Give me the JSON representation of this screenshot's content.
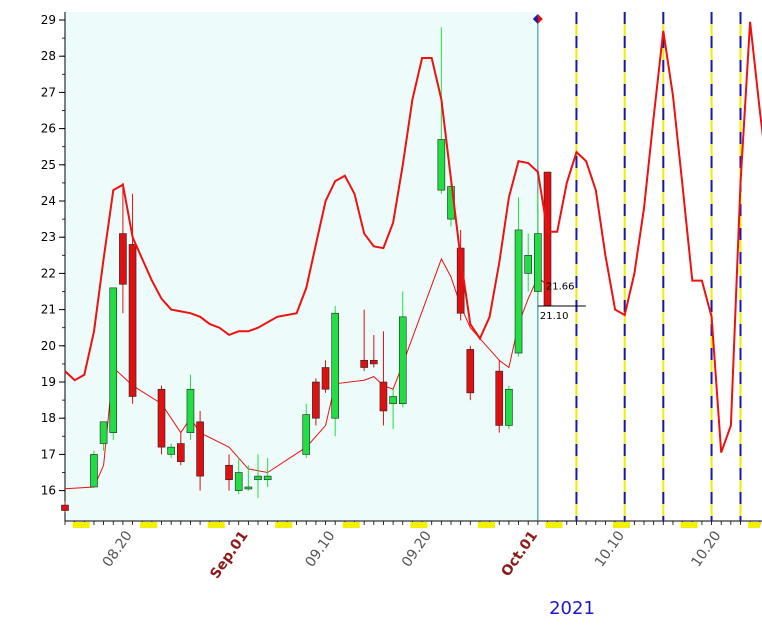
{
  "chart_data": {
    "type": "candlestick",
    "year_label": "2021",
    "y_axis": {
      "min": 15.5,
      "max": 29.2,
      "ticks": [
        16,
        17,
        18,
        19,
        20,
        21,
        22,
        23,
        24,
        25,
        26,
        27,
        28,
        29
      ]
    },
    "x_axis": {
      "start": "2021-08-13",
      "end": "2021-10-24",
      "ticks": [
        {
          "date": "2021-08-20",
          "label": "08.20",
          "kind": "day"
        },
        {
          "date": "2021-09-01",
          "label": "Sep.01",
          "kind": "month"
        },
        {
          "date": "2021-09-10",
          "label": "09.10",
          "kind": "day"
        },
        {
          "date": "2021-09-20",
          "label": "09.20",
          "kind": "day"
        },
        {
          "date": "2021-10-01",
          "label": "Oct.01",
          "kind": "month"
        },
        {
          "date": "2021-10-10",
          "label": "10.10",
          "kind": "day"
        },
        {
          "date": "2021-10-20",
          "label": "10.20",
          "kind": "day"
        }
      ]
    },
    "candles": [
      {
        "date": "2021-08-13",
        "open": 15.6,
        "high": 15.7,
        "low": 15.4,
        "close": 15.45
      },
      {
        "date": "2021-08-16",
        "open": 16.1,
        "high": 17.1,
        "low": 16.1,
        "close": 17.0
      },
      {
        "date": "2021-08-17",
        "open": 17.3,
        "high": 17.9,
        "low": 17.1,
        "close": 17.9
      },
      {
        "date": "2021-08-18",
        "open": 17.6,
        "high": 21.6,
        "low": 17.4,
        "close": 21.6
      },
      {
        "date": "2021-08-19",
        "open": 23.1,
        "high": 24.5,
        "low": 20.9,
        "close": 21.7
      },
      {
        "date": "2021-08-20",
        "open": 22.8,
        "high": 24.2,
        "low": 18.4,
        "close": 18.6
      },
      {
        "date": "2021-08-23",
        "open": 18.8,
        "high": 18.9,
        "low": 17.0,
        "close": 17.2
      },
      {
        "date": "2021-08-24",
        "open": 17.0,
        "high": 17.3,
        "low": 16.9,
        "close": 17.2
      },
      {
        "date": "2021-08-25",
        "open": 17.3,
        "high": 17.6,
        "low": 16.7,
        "close": 16.8
      },
      {
        "date": "2021-08-26",
        "open": 17.6,
        "high": 19.2,
        "low": 17.4,
        "close": 18.8
      },
      {
        "date": "2021-08-27",
        "open": 17.9,
        "high": 18.2,
        "low": 16.0,
        "close": 16.4
      },
      {
        "date": "2021-08-30",
        "open": 16.7,
        "high": 17.0,
        "low": 16.0,
        "close": 16.3
      },
      {
        "date": "2021-08-31",
        "open": 16.0,
        "high": 16.9,
        "low": 15.9,
        "close": 16.5
      },
      {
        "date": "2021-09-01",
        "open": 16.1,
        "high": 16.7,
        "low": 16.0,
        "close": 16.1
      },
      {
        "date": "2021-09-02",
        "open": 16.3,
        "high": 17.0,
        "low": 15.8,
        "close": 16.4
      },
      {
        "date": "2021-09-03",
        "open": 16.3,
        "high": 16.9,
        "low": 16.1,
        "close": 16.4
      },
      {
        "date": "2021-09-07",
        "open": 17.0,
        "high": 18.4,
        "low": 16.9,
        "close": 18.1
      },
      {
        "date": "2021-09-08",
        "open": 19.0,
        "high": 19.1,
        "low": 17.8,
        "close": 18.0
      },
      {
        "date": "2021-09-09",
        "open": 19.4,
        "high": 19.6,
        "low": 18.7,
        "close": 18.8
      },
      {
        "date": "2021-09-10",
        "open": 18.0,
        "high": 21.1,
        "low": 17.5,
        "close": 20.9
      },
      {
        "date": "2021-09-13",
        "open": 19.6,
        "high": 21.0,
        "low": 19.3,
        "close": 19.4
      },
      {
        "date": "2021-09-14",
        "open": 19.6,
        "high": 20.3,
        "low": 19.4,
        "close": 19.5
      },
      {
        "date": "2021-09-15",
        "open": 19.0,
        "high": 20.4,
        "low": 17.8,
        "close": 18.2
      },
      {
        "date": "2021-09-16",
        "open": 18.4,
        "high": 18.8,
        "low": 17.7,
        "close": 18.6
      },
      {
        "date": "2021-09-17",
        "open": 18.4,
        "high": 21.5,
        "low": 18.3,
        "close": 20.8
      },
      {
        "date": "2021-09-21",
        "open": 24.3,
        "high": 28.8,
        "low": 24.2,
        "close": 25.7
      },
      {
        "date": "2021-09-22",
        "open": 23.5,
        "high": 24.7,
        "low": 23.3,
        "close": 24.4
      },
      {
        "date": "2021-09-23",
        "open": 22.7,
        "high": 23.2,
        "low": 20.7,
        "close": 20.9
      },
      {
        "date": "2021-09-24",
        "open": 19.9,
        "high": 20.0,
        "low": 18.5,
        "close": 18.7
      },
      {
        "date": "2021-09-27",
        "open": 19.3,
        "high": 19.6,
        "low": 17.6,
        "close": 17.8
      },
      {
        "date": "2021-09-28",
        "open": 17.8,
        "high": 18.9,
        "low": 17.7,
        "close": 18.8
      },
      {
        "date": "2021-09-29",
        "open": 19.8,
        "high": 24.1,
        "low": 19.7,
        "close": 23.2
      },
      {
        "date": "2021-09-30",
        "open": 22.0,
        "high": 23.1,
        "low": 21.5,
        "close": 22.5
      },
      {
        "date": "2021-10-01",
        "open": 21.5,
        "high": 24.2,
        "low": 21.3,
        "close": 23.1
      },
      {
        "date": "2021-10-02",
        "open": 24.8,
        "high": 24.8,
        "low": 21.1,
        "close": 21.1
      }
    ],
    "envelope_line": [
      [
        "2021-08-13",
        19.3
      ],
      [
        "2021-08-14",
        19.05
      ],
      [
        "2021-08-15",
        19.2
      ],
      [
        "2021-08-16",
        20.4
      ],
      [
        "2021-08-17",
        22.4
      ],
      [
        "2021-08-18",
        24.3
      ],
      [
        "2021-08-19",
        24.45
      ],
      [
        "2021-08-20",
        23.0
      ],
      [
        "2021-08-21",
        22.4
      ],
      [
        "2021-08-22",
        21.8
      ],
      [
        "2021-08-23",
        21.3
      ],
      [
        "2021-08-24",
        21.0
      ],
      [
        "2021-08-25",
        20.95
      ],
      [
        "2021-08-26",
        20.9
      ],
      [
        "2021-08-27",
        20.8
      ],
      [
        "2021-08-28",
        20.6
      ],
      [
        "2021-08-29",
        20.5
      ],
      [
        "2021-08-30",
        20.3
      ],
      [
        "2021-08-31",
        20.4
      ],
      [
        "2021-09-01",
        20.4
      ],
      [
        "2021-09-02",
        20.5
      ],
      [
        "2021-09-04",
        20.8
      ],
      [
        "2021-09-06",
        20.9
      ],
      [
        "2021-09-07",
        21.6
      ],
      [
        "2021-09-08",
        22.8
      ],
      [
        "2021-09-09",
        24.0
      ],
      [
        "2021-09-10",
        24.55
      ],
      [
        "2021-09-11",
        24.7
      ],
      [
        "2021-09-12",
        24.2
      ],
      [
        "2021-09-13",
        23.1
      ],
      [
        "2021-09-14",
        22.75
      ],
      [
        "2021-09-15",
        22.7
      ],
      [
        "2021-09-16",
        23.4
      ],
      [
        "2021-09-17",
        25.0
      ],
      [
        "2021-09-18",
        26.8
      ],
      [
        "2021-09-19",
        27.95
      ],
      [
        "2021-09-20",
        27.95
      ],
      [
        "2021-09-21",
        26.8
      ],
      [
        "2021-09-22",
        24.6
      ],
      [
        "2021-09-23",
        22.4
      ],
      [
        "2021-09-24",
        20.6
      ],
      [
        "2021-09-25",
        20.2
      ],
      [
        "2021-09-26",
        20.8
      ],
      [
        "2021-09-27",
        22.3
      ],
      [
        "2021-09-28",
        24.1
      ],
      [
        "2021-09-29",
        25.1
      ],
      [
        "2021-09-30",
        25.05
      ],
      [
        "2021-10-01",
        24.8
      ],
      [
        "2021-10-02",
        23.15
      ],
      [
        "2021-10-03",
        23.15
      ],
      [
        "2021-10-04",
        24.5
      ],
      [
        "2021-10-05",
        25.35
      ],
      [
        "2021-10-06",
        25.1
      ],
      [
        "2021-10-07",
        24.3
      ],
      [
        "2021-10-08",
        22.5
      ],
      [
        "2021-10-09",
        21.0
      ],
      [
        "2021-10-10",
        20.85
      ],
      [
        "2021-10-11",
        22.0
      ],
      [
        "2021-10-12",
        23.8
      ],
      [
        "2021-10-13",
        26.3
      ],
      [
        "2021-10-14",
        28.7
      ],
      [
        "2021-10-15",
        26.9
      ],
      [
        "2021-10-16",
        24.4
      ],
      [
        "2021-10-17",
        21.8
      ],
      [
        "2021-10-18",
        21.8
      ],
      [
        "2021-10-19",
        20.8
      ],
      [
        "2021-10-20",
        17.05
      ],
      [
        "2021-10-21",
        17.8
      ],
      [
        "2021-10-22",
        24.5
      ],
      [
        "2021-10-23",
        28.95
      ],
      [
        "2021-10-24",
        26.5
      ],
      [
        "2021-10-25",
        24.3
      ]
    ],
    "moving_average_line": [
      [
        "2021-08-13",
        16.05
      ],
      [
        "2021-08-16",
        16.1
      ],
      [
        "2021-08-17",
        16.7
      ],
      [
        "2021-08-18",
        19.4
      ],
      [
        "2021-08-20",
        18.9
      ],
      [
        "2021-08-23",
        18.4
      ],
      [
        "2021-08-25",
        17.6
      ],
      [
        "2021-08-26",
        18.0
      ],
      [
        "2021-08-27",
        17.6
      ],
      [
        "2021-08-30",
        17.2
      ],
      [
        "2021-09-01",
        16.6
      ],
      [
        "2021-09-03",
        16.5
      ],
      [
        "2021-09-07",
        17.2
      ],
      [
        "2021-09-09",
        17.8
      ],
      [
        "2021-09-10",
        18.95
      ],
      [
        "2021-09-13",
        19.05
      ],
      [
        "2021-09-14",
        19.15
      ],
      [
        "2021-09-15",
        18.9
      ],
      [
        "2021-09-16",
        18.8
      ],
      [
        "2021-09-17",
        19.5
      ],
      [
        "2021-09-21",
        22.4
      ],
      [
        "2021-09-22",
        21.9
      ],
      [
        "2021-09-23",
        21.1
      ],
      [
        "2021-09-24",
        20.5
      ],
      [
        "2021-09-27",
        19.6
      ],
      [
        "2021-09-28",
        19.4
      ],
      [
        "2021-09-29",
        20.6
      ],
      [
        "2021-09-30",
        21.3
      ],
      [
        "2021-10-01",
        21.9
      ],
      [
        "2021-10-02",
        21.66
      ]
    ],
    "last_price_labels": [
      "21.66",
      "21.10"
    ],
    "cursor_date": "2021-10-01",
    "future_cycle_dates": [
      "2021-10-05",
      "2021-10-10",
      "2021-10-14",
      "2021-10-19",
      "2021-10-22"
    ],
    "highlighted_region": {
      "from": "2021-08-13",
      "to": "2021-10-01",
      "color": "#eefbfb"
    },
    "colors": {
      "up_candle": "#22dd44",
      "down_candle": "#dd1111",
      "envelope": "#ee1111",
      "moving_average": "#ee1111",
      "cursor_line": "#1a8a8a",
      "cycle_dash_blue": "#1a1aaa",
      "cycle_dash_yellow": "#eeee00",
      "year_label": "#1a1acc",
      "month_label": "#8B1A1A"
    },
    "grid": false
  }
}
